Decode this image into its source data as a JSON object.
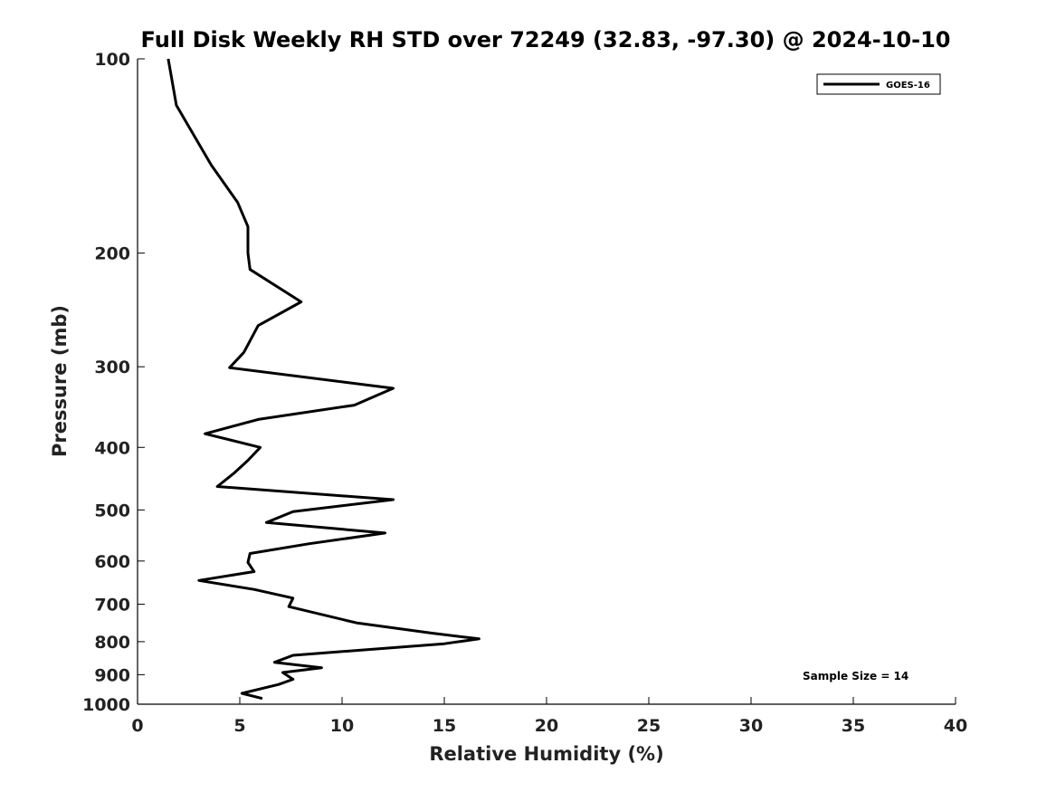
{
  "chart_data": {
    "type": "line",
    "title": "Full Disk Weekly RH STD over 72249 (32.83, -97.30) @ 2024-10-10",
    "xlabel": "Relative Humidity (%)",
    "ylabel": "Pressure (mb)",
    "xlim": [
      0,
      40
    ],
    "ylim": [
      100,
      1000
    ],
    "y_scale": "log",
    "y_reversed": true,
    "grid": false,
    "legend_position": "top-right",
    "x_ticks": [
      "0",
      "5",
      "10",
      "15",
      "20",
      "25",
      "30",
      "35",
      "40"
    ],
    "y_ticks": [
      "100",
      "200",
      "300",
      "400",
      "500",
      "600",
      "700",
      "800",
      "900",
      "1000"
    ],
    "series": [
      {
        "name": "GOES-16",
        "color": "#000000",
        "points": [
          [
            1.5,
            100
          ],
          [
            1.9,
            118
          ],
          [
            3.6,
            146
          ],
          [
            4.9,
            167
          ],
          [
            5.4,
            182
          ],
          [
            5.4,
            200
          ],
          [
            5.5,
            212
          ],
          [
            8.0,
            238
          ],
          [
            5.9,
            259
          ],
          [
            5.2,
            285
          ],
          [
            4.5,
            301
          ],
          [
            12.5,
            324
          ],
          [
            10.6,
            344
          ],
          [
            5.9,
            362
          ],
          [
            3.3,
            381
          ],
          [
            6.0,
            400
          ],
          [
            5.4,
            419
          ],
          [
            4.7,
            439
          ],
          [
            3.9,
            460
          ],
          [
            12.5,
            482
          ],
          [
            7.6,
            503
          ],
          [
            6.3,
            523
          ],
          [
            12.1,
            543
          ],
          [
            8.4,
            564
          ],
          [
            5.5,
            584
          ],
          [
            5.4,
            603
          ],
          [
            5.7,
            623
          ],
          [
            3.0,
            643
          ],
          [
            5.7,
            664
          ],
          [
            7.6,
            685
          ],
          [
            7.4,
            706
          ],
          [
            10.7,
            748
          ],
          [
            14.4,
            776
          ],
          [
            16.7,
            792
          ],
          [
            15.0,
            806
          ],
          [
            7.6,
            840
          ],
          [
            6.7,
            861
          ],
          [
            9.0,
            878
          ],
          [
            7.1,
            893
          ],
          [
            7.6,
            915
          ],
          [
            6.9,
            932
          ],
          [
            5.1,
            962
          ],
          [
            6.1,
            980
          ]
        ]
      }
    ],
    "annotation": "Sample Size = 14"
  }
}
